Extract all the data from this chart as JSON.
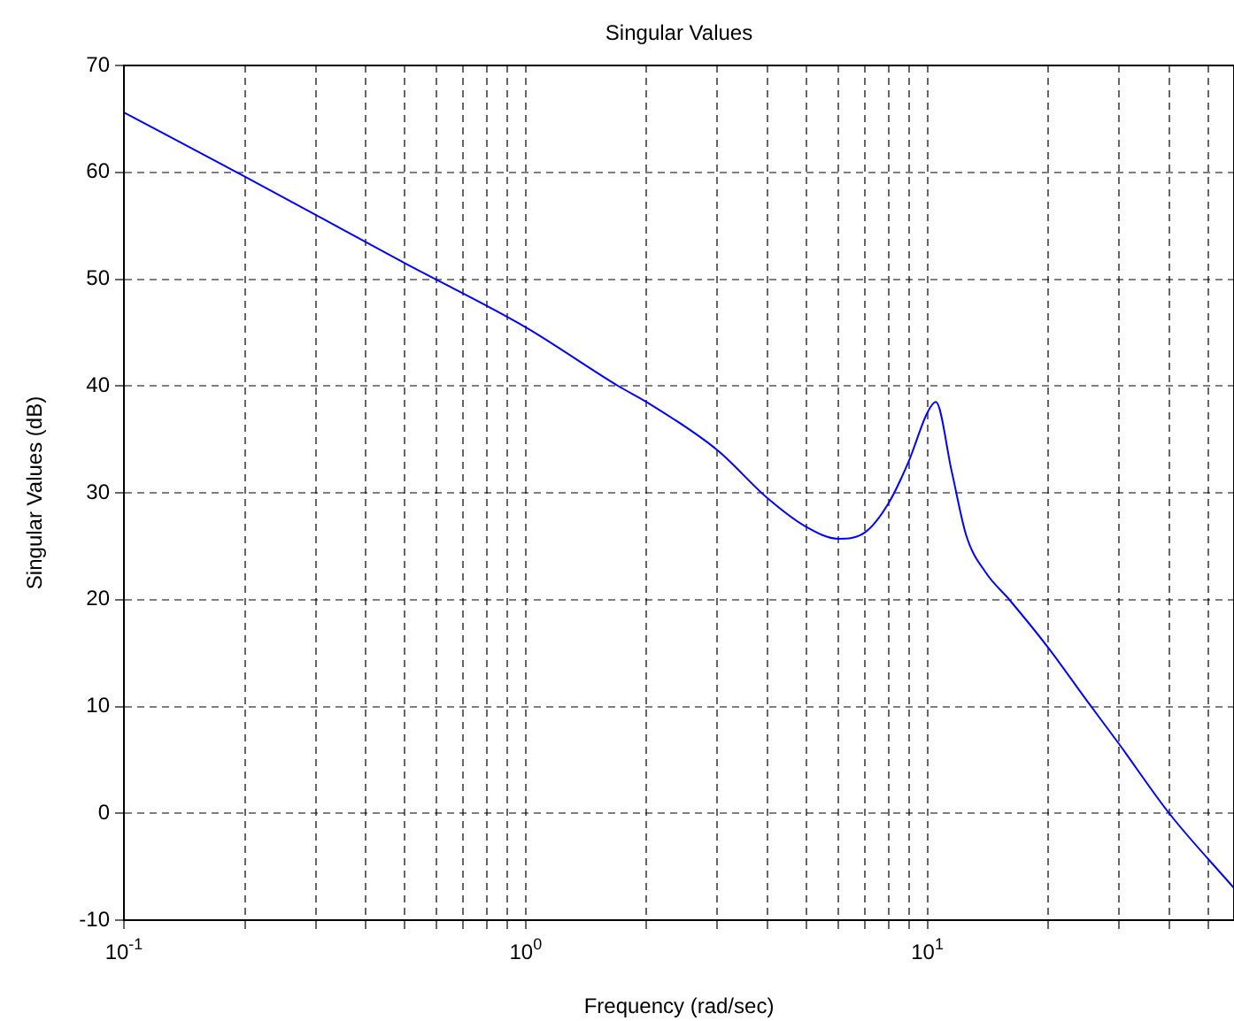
{
  "chart_data": {
    "type": "line",
    "title": "Singular Values",
    "xlabel": "Frequency (rad/sec)",
    "ylabel": "Singular Values (dB)",
    "log": "x",
    "grid": true,
    "marker": "none",
    "line_style": "solid",
    "xlim": [
      0.1,
      58
    ],
    "ylim": [
      -10,
      70
    ],
    "xticks": [
      {
        "value": 0.1,
        "label": "10$^{-1}$"
      },
      {
        "value": 0.2,
        "label": null
      },
      {
        "value": 0.3,
        "label": null
      },
      {
        "value": 0.4,
        "label": null
      },
      {
        "value": 0.5,
        "label": null
      },
      {
        "value": 0.6,
        "label": null
      },
      {
        "value": 0.7,
        "label": null
      },
      {
        "value": 0.8,
        "label": null
      },
      {
        "value": 0.9,
        "label": null
      },
      {
        "value": 1,
        "label": "10$^{0}$"
      },
      {
        "value": 2,
        "label": null
      },
      {
        "value": 3,
        "label": null
      },
      {
        "value": 4,
        "label": null
      },
      {
        "value": 5,
        "label": null
      },
      {
        "value": 6,
        "label": null
      },
      {
        "value": 7,
        "label": null
      },
      {
        "value": 8,
        "label": null
      },
      {
        "value": 9,
        "label": null
      },
      {
        "value": 10,
        "label": "10$^{1}$"
      },
      {
        "value": 20,
        "label": null
      },
      {
        "value": 30,
        "label": null
      },
      {
        "value": 40,
        "label": null
      },
      {
        "value": 50,
        "label": null
      }
    ],
    "yticks": [
      -10,
      0,
      10,
      20,
      30,
      40,
      50,
      60,
      70
    ],
    "series": [
      {
        "color": "#0000ff",
        "x": [
          0.1,
          0.2,
          0.5,
          1,
          1.7,
          2,
          3,
          4,
          5,
          6,
          7,
          8,
          9,
          10,
          10.5,
          11.5,
          12.5,
          14,
          16,
          20,
          25,
          30,
          40,
          58
        ],
        "values": [
          65.6,
          59.6,
          51.5,
          45.5,
          40,
          38.5,
          34,
          29.5,
          26.8,
          25.7,
          26.3,
          29,
          33,
          37.5,
          38.5,
          32,
          26,
          22.5,
          20,
          15.5,
          10.5,
          6.5,
          0,
          -7
        ]
      }
    ]
  }
}
